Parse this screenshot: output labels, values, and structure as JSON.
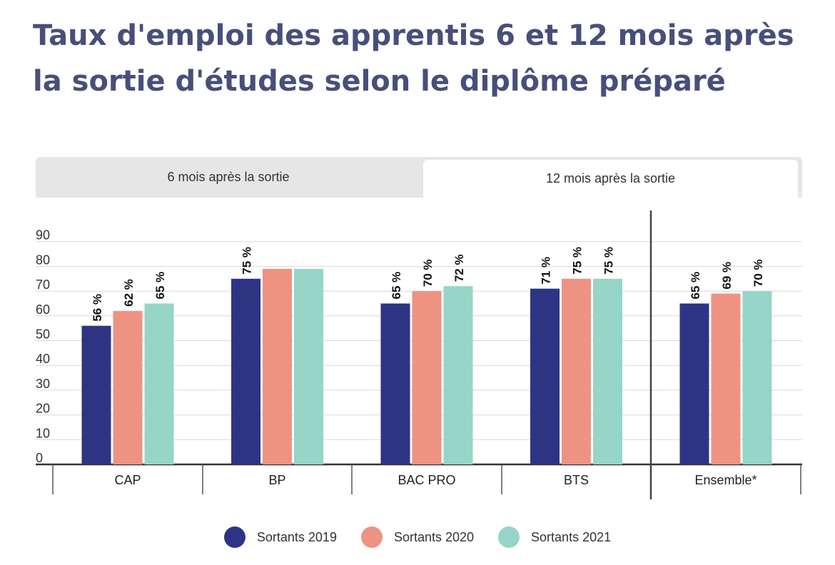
{
  "title": "Taux d'emploi des apprentis 6 et 12 mois après la sortie d'études selon le diplôme préparé",
  "tabs": [
    {
      "label": "6 mois après la sortie",
      "active": false
    },
    {
      "label": "12 mois après la sortie",
      "active": true
    }
  ],
  "chart_data": {
    "type": "bar",
    "title": "Taux d'emploi des apprentis 6 et 12 mois après la sortie d'études selon le diplôme préparé",
    "categories": [
      "CAP",
      "BP",
      "BAC PRO",
      "BTS",
      "Ensemble*"
    ],
    "series": [
      {
        "name": "Sortants 2019",
        "color": "#2e3484",
        "values": [
          56,
          75,
          65,
          71,
          65
        ],
        "labels": [
          "56 %",
          "75 %",
          "65 %",
          "71 %",
          "65 %"
        ]
      },
      {
        "name": "Sortants 2020",
        "color": "#ee9382",
        "values": [
          62,
          79,
          70,
          75,
          69
        ],
        "labels": [
          "62 %",
          "",
          "70 %",
          "75 %",
          "69 %"
        ]
      },
      {
        "name": "Sortants 2021",
        "color": "#96d5c8",
        "values": [
          65,
          79,
          72,
          75,
          70
        ],
        "labels": [
          "65 %",
          "",
          "72 %",
          "75 %",
          "70 %"
        ]
      }
    ],
    "yticks": [
      0,
      10,
      20,
      30,
      40,
      50,
      60,
      70,
      80,
      90
    ],
    "ylim": [
      0,
      100
    ],
    "grid": true,
    "legend": "bottom-center"
  }
}
